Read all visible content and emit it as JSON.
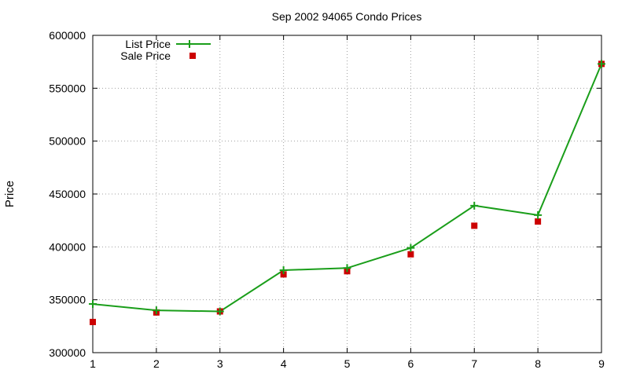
{
  "chart_data": {
    "type": "line",
    "title": "Sep 2002 94065 Condo Prices",
    "xlabel": "",
    "ylabel": "Price",
    "x": [
      1,
      2,
      3,
      4,
      5,
      6,
      7,
      8,
      9
    ],
    "xlim": [
      1,
      9
    ],
    "ylim": [
      300000,
      600000
    ],
    "xticks": [
      "1",
      "2",
      "3",
      "4",
      "5",
      "6",
      "7",
      "8",
      "9"
    ],
    "yticks": [
      "300000",
      "350000",
      "400000",
      "450000",
      "500000",
      "550000",
      "600000"
    ],
    "grid": true,
    "legend_position": "top-left",
    "series": [
      {
        "name": "List Price",
        "style": "line-with-plus-markers",
        "color": "#1a9e1a",
        "values": [
          346000,
          340000,
          339000,
          378000,
          380000,
          399000,
          439000,
          430000,
          573000
        ]
      },
      {
        "name": "Sale Price",
        "style": "square-markers",
        "color": "#cc0000",
        "values": [
          329000,
          338000,
          339000,
          374000,
          377000,
          393000,
          420000,
          424000,
          573000
        ]
      }
    ]
  }
}
